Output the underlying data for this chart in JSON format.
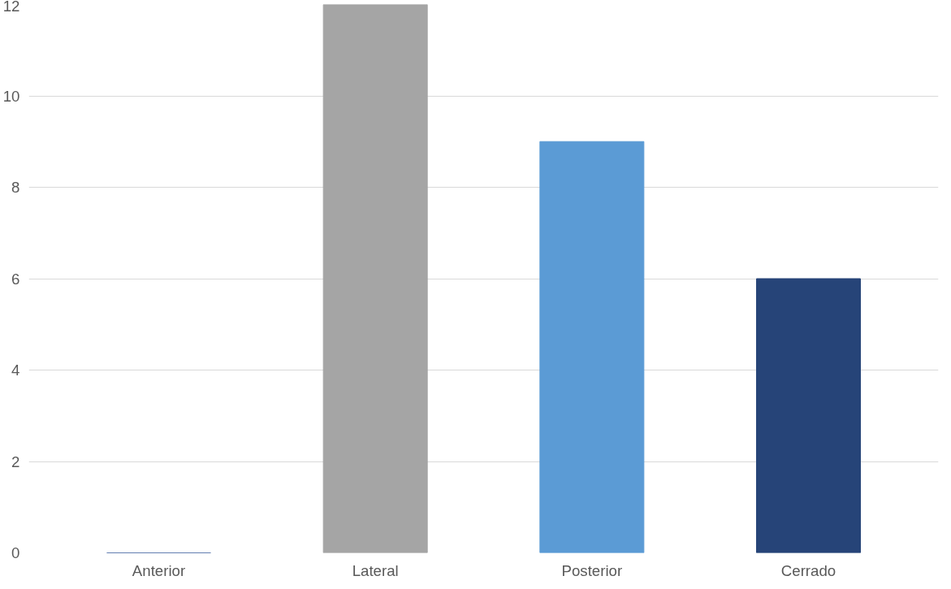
{
  "chart_data": {
    "type": "bar",
    "categories": [
      "Anterior",
      "Lateral",
      "Posterior",
      "Cerrado"
    ],
    "values": [
      0,
      12,
      9,
      6
    ],
    "colors": [
      "#2f5597",
      "#a5a5a5",
      "#5b9bd5",
      "#264478"
    ],
    "ylim": [
      0,
      12
    ],
    "yticks": [
      0,
      2,
      4,
      6,
      8,
      10,
      12
    ],
    "grid": "y"
  }
}
